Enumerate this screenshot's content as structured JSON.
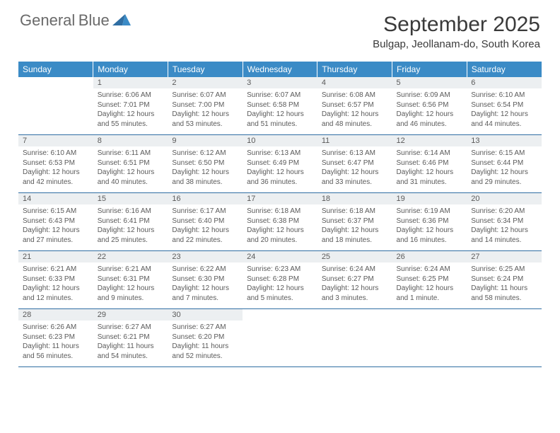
{
  "logo": {
    "line1": "General",
    "line2": "Blue"
  },
  "title": "September 2025",
  "location": "Bulgap, Jeollanam-do, South Korea",
  "colors": {
    "header_bg": "#3b8bc6",
    "header_text": "#ffffff",
    "daynum_bg": "#eceff1",
    "row_border": "#2f6ea3",
    "body_text": "#5a5a5a",
    "title_text": "#3a3a3a",
    "logo_gray": "#6a6a6a",
    "logo_blue": "#3b8bc6"
  },
  "dayHeaders": [
    "Sunday",
    "Monday",
    "Tuesday",
    "Wednesday",
    "Thursday",
    "Friday",
    "Saturday"
  ],
  "weeks": [
    [
      {
        "num": "",
        "lines": [
          "",
          "",
          "",
          ""
        ]
      },
      {
        "num": "1",
        "lines": [
          "Sunrise: 6:06 AM",
          "Sunset: 7:01 PM",
          "Daylight: 12 hours",
          "and 55 minutes."
        ]
      },
      {
        "num": "2",
        "lines": [
          "Sunrise: 6:07 AM",
          "Sunset: 7:00 PM",
          "Daylight: 12 hours",
          "and 53 minutes."
        ]
      },
      {
        "num": "3",
        "lines": [
          "Sunrise: 6:07 AM",
          "Sunset: 6:58 PM",
          "Daylight: 12 hours",
          "and 51 minutes."
        ]
      },
      {
        "num": "4",
        "lines": [
          "Sunrise: 6:08 AM",
          "Sunset: 6:57 PM",
          "Daylight: 12 hours",
          "and 48 minutes."
        ]
      },
      {
        "num": "5",
        "lines": [
          "Sunrise: 6:09 AM",
          "Sunset: 6:56 PM",
          "Daylight: 12 hours",
          "and 46 minutes."
        ]
      },
      {
        "num": "6",
        "lines": [
          "Sunrise: 6:10 AM",
          "Sunset: 6:54 PM",
          "Daylight: 12 hours",
          "and 44 minutes."
        ]
      }
    ],
    [
      {
        "num": "7",
        "lines": [
          "Sunrise: 6:10 AM",
          "Sunset: 6:53 PM",
          "Daylight: 12 hours",
          "and 42 minutes."
        ]
      },
      {
        "num": "8",
        "lines": [
          "Sunrise: 6:11 AM",
          "Sunset: 6:51 PM",
          "Daylight: 12 hours",
          "and 40 minutes."
        ]
      },
      {
        "num": "9",
        "lines": [
          "Sunrise: 6:12 AM",
          "Sunset: 6:50 PM",
          "Daylight: 12 hours",
          "and 38 minutes."
        ]
      },
      {
        "num": "10",
        "lines": [
          "Sunrise: 6:13 AM",
          "Sunset: 6:49 PM",
          "Daylight: 12 hours",
          "and 36 minutes."
        ]
      },
      {
        "num": "11",
        "lines": [
          "Sunrise: 6:13 AM",
          "Sunset: 6:47 PM",
          "Daylight: 12 hours",
          "and 33 minutes."
        ]
      },
      {
        "num": "12",
        "lines": [
          "Sunrise: 6:14 AM",
          "Sunset: 6:46 PM",
          "Daylight: 12 hours",
          "and 31 minutes."
        ]
      },
      {
        "num": "13",
        "lines": [
          "Sunrise: 6:15 AM",
          "Sunset: 6:44 PM",
          "Daylight: 12 hours",
          "and 29 minutes."
        ]
      }
    ],
    [
      {
        "num": "14",
        "lines": [
          "Sunrise: 6:15 AM",
          "Sunset: 6:43 PM",
          "Daylight: 12 hours",
          "and 27 minutes."
        ]
      },
      {
        "num": "15",
        "lines": [
          "Sunrise: 6:16 AM",
          "Sunset: 6:41 PM",
          "Daylight: 12 hours",
          "and 25 minutes."
        ]
      },
      {
        "num": "16",
        "lines": [
          "Sunrise: 6:17 AM",
          "Sunset: 6:40 PM",
          "Daylight: 12 hours",
          "and 22 minutes."
        ]
      },
      {
        "num": "17",
        "lines": [
          "Sunrise: 6:18 AM",
          "Sunset: 6:38 PM",
          "Daylight: 12 hours",
          "and 20 minutes."
        ]
      },
      {
        "num": "18",
        "lines": [
          "Sunrise: 6:18 AM",
          "Sunset: 6:37 PM",
          "Daylight: 12 hours",
          "and 18 minutes."
        ]
      },
      {
        "num": "19",
        "lines": [
          "Sunrise: 6:19 AM",
          "Sunset: 6:36 PM",
          "Daylight: 12 hours",
          "and 16 minutes."
        ]
      },
      {
        "num": "20",
        "lines": [
          "Sunrise: 6:20 AM",
          "Sunset: 6:34 PM",
          "Daylight: 12 hours",
          "and 14 minutes."
        ]
      }
    ],
    [
      {
        "num": "21",
        "lines": [
          "Sunrise: 6:21 AM",
          "Sunset: 6:33 PM",
          "Daylight: 12 hours",
          "and 12 minutes."
        ]
      },
      {
        "num": "22",
        "lines": [
          "Sunrise: 6:21 AM",
          "Sunset: 6:31 PM",
          "Daylight: 12 hours",
          "and 9 minutes."
        ]
      },
      {
        "num": "23",
        "lines": [
          "Sunrise: 6:22 AM",
          "Sunset: 6:30 PM",
          "Daylight: 12 hours",
          "and 7 minutes."
        ]
      },
      {
        "num": "24",
        "lines": [
          "Sunrise: 6:23 AM",
          "Sunset: 6:28 PM",
          "Daylight: 12 hours",
          "and 5 minutes."
        ]
      },
      {
        "num": "25",
        "lines": [
          "Sunrise: 6:24 AM",
          "Sunset: 6:27 PM",
          "Daylight: 12 hours",
          "and 3 minutes."
        ]
      },
      {
        "num": "26",
        "lines": [
          "Sunrise: 6:24 AM",
          "Sunset: 6:25 PM",
          "Daylight: 12 hours",
          "and 1 minute."
        ]
      },
      {
        "num": "27",
        "lines": [
          "Sunrise: 6:25 AM",
          "Sunset: 6:24 PM",
          "Daylight: 11 hours",
          "and 58 minutes."
        ]
      }
    ],
    [
      {
        "num": "28",
        "lines": [
          "Sunrise: 6:26 AM",
          "Sunset: 6:23 PM",
          "Daylight: 11 hours",
          "and 56 minutes."
        ]
      },
      {
        "num": "29",
        "lines": [
          "Sunrise: 6:27 AM",
          "Sunset: 6:21 PM",
          "Daylight: 11 hours",
          "and 54 minutes."
        ]
      },
      {
        "num": "30",
        "lines": [
          "Sunrise: 6:27 AM",
          "Sunset: 6:20 PM",
          "Daylight: 11 hours",
          "and 52 minutes."
        ]
      },
      {
        "num": "",
        "lines": [
          "",
          "",
          "",
          ""
        ]
      },
      {
        "num": "",
        "lines": [
          "",
          "",
          "",
          ""
        ]
      },
      {
        "num": "",
        "lines": [
          "",
          "",
          "",
          ""
        ]
      },
      {
        "num": "",
        "lines": [
          "",
          "",
          "",
          ""
        ]
      }
    ]
  ]
}
